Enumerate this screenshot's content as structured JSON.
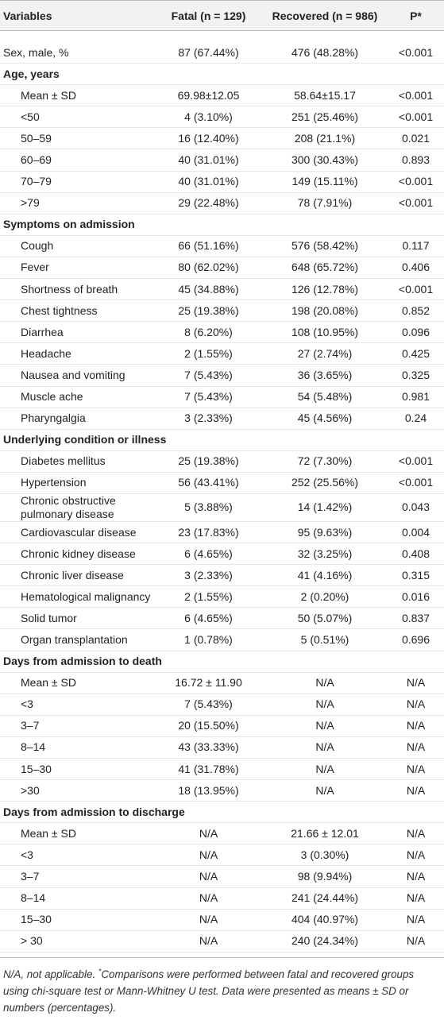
{
  "table": {
    "header": [
      "Variables",
      "Fatal (n = 129)",
      "Recovered (n = 986)",
      "P*"
    ],
    "rows": [
      {
        "cells": [
          "Sex, male, %",
          "87 (67.44%)",
          "476 (48.28%)",
          "<0.001"
        ]
      },
      {
        "heading": "Age, years"
      },
      {
        "cells": [
          "Mean ± SD",
          "69.98±12.05",
          "58.64±15.17",
          "<0.001"
        ]
      },
      {
        "cells": [
          "<50",
          "4 (3.10%)",
          "251 (25.46%)",
          "<0.001"
        ]
      },
      {
        "cells": [
          "50–59",
          "16 (12.40%)",
          "208 (21.1%)",
          "0.021"
        ]
      },
      {
        "cells": [
          "60–69",
          "40 (31.01%)",
          "300 (30.43%)",
          "0.893"
        ]
      },
      {
        "cells": [
          "70–79",
          "40 (31.01%)",
          "149 (15.11%)",
          "<0.001"
        ]
      },
      {
        "cells": [
          ">79",
          "29 (22.48%)",
          "78 (7.91%)",
          "<0.001"
        ]
      },
      {
        "heading": "Symptoms on admission"
      },
      {
        "cells": [
          "Cough",
          "66 (51.16%)",
          "576 (58.42%)",
          "0.117"
        ]
      },
      {
        "cells": [
          "Fever",
          "80 (62.02%)",
          "648 (65.72%)",
          "0.406"
        ]
      },
      {
        "cells": [
          "Shortness of breath",
          "45 (34.88%)",
          "126 (12.78%)",
          "<0.001"
        ]
      },
      {
        "cells": [
          "Chest tightness",
          "25 (19.38%)",
          "198 (20.08%)",
          "0.852"
        ]
      },
      {
        "cells": [
          "Diarrhea",
          "8 (6.20%)",
          "108 (10.95%)",
          "0.096"
        ]
      },
      {
        "cells": [
          "Headache",
          "2 (1.55%)",
          "27 (2.74%)",
          "0.425"
        ]
      },
      {
        "cells": [
          "Nausea and vomiting",
          "7 (5.43%)",
          "36 (3.65%)",
          "0.325"
        ]
      },
      {
        "cells": [
          "Muscle ache",
          "7 (5.43%)",
          "54 (5.48%)",
          "0.981"
        ]
      },
      {
        "cells": [
          "Pharyngalgia",
          "3 (2.33%)",
          "45 (4.56%)",
          "0.24"
        ]
      },
      {
        "heading": "Underlying condition or illness"
      },
      {
        "cells": [
          "Diabetes mellitus",
          "25 (19.38%)",
          "72 (7.30%)",
          "<0.001"
        ]
      },
      {
        "cells": [
          "Hypertension",
          "56 (43.41%)",
          "252 (25.56%)",
          "<0.001"
        ]
      },
      {
        "cells": [
          "Chronic obstructive pulmonary disease",
          "5 (3.88%)",
          "14 (1.42%)",
          "0.043"
        ]
      },
      {
        "cells": [
          "Cardiovascular disease",
          "23 (17.83%)",
          "95 (9.63%)",
          "0.004"
        ]
      },
      {
        "cells": [
          "Chronic kidney disease",
          "6 (4.65%)",
          "32 (3.25%)",
          "0.408"
        ]
      },
      {
        "cells": [
          "Chronic liver disease",
          "3 (2.33%)",
          "41 (4.16%)",
          "0.315"
        ]
      },
      {
        "cells": [
          "Hematological malignancy",
          "2 (1.55%)",
          "2 (0.20%)",
          "0.016"
        ]
      },
      {
        "cells": [
          "Solid tumor",
          "6 (4.65%)",
          "50 (5.07%)",
          "0.837"
        ]
      },
      {
        "cells": [
          "Organ transplantation",
          "1 (0.78%)",
          "5 (0.51%)",
          "0.696"
        ]
      },
      {
        "heading": "Days from admission to death"
      },
      {
        "cells": [
          "Mean ± SD",
          "16.72 ± 11.90",
          "N/A",
          "N/A"
        ]
      },
      {
        "cells": [
          "<3",
          "7 (5.43%)",
          "N/A",
          "N/A"
        ]
      },
      {
        "cells": [
          "3–7",
          "20 (15.50%)",
          "N/A",
          "N/A"
        ]
      },
      {
        "cells": [
          "8–14",
          "43 (33.33%)",
          "N/A",
          "N/A"
        ]
      },
      {
        "cells": [
          "15–30",
          "41 (31.78%)",
          "N/A",
          "N/A"
        ]
      },
      {
        "cells": [
          ">30",
          "18 (13.95%)",
          "N/A",
          "N/A"
        ]
      },
      {
        "heading": "Days from admission to discharge"
      },
      {
        "cells": [
          "Mean ± SD",
          "N/A",
          "21.66 ± 12.01",
          "N/A"
        ]
      },
      {
        "cells": [
          "<3",
          "N/A",
          "3 (0.30%)",
          "N/A"
        ]
      },
      {
        "cells": [
          "3–7",
          "N/A",
          "98 (9.94%)",
          "N/A"
        ]
      },
      {
        "cells": [
          "8–14",
          "N/A",
          "241 (24.44%)",
          "N/A"
        ]
      },
      {
        "cells": [
          "15–30",
          "N/A",
          "404 (40.97%)",
          "N/A"
        ]
      },
      {
        "cells": [
          "> 30",
          "N/A",
          "240 (24.34%)",
          "N/A"
        ]
      }
    ],
    "footnote": [
      "N/A, not applicable. ",
      "*",
      "Comparisons were performed between fatal and recovered groups using chi-square test or Mann-Whitney U test. Data were presented as means ± SD or numbers (percentages)."
    ]
  }
}
